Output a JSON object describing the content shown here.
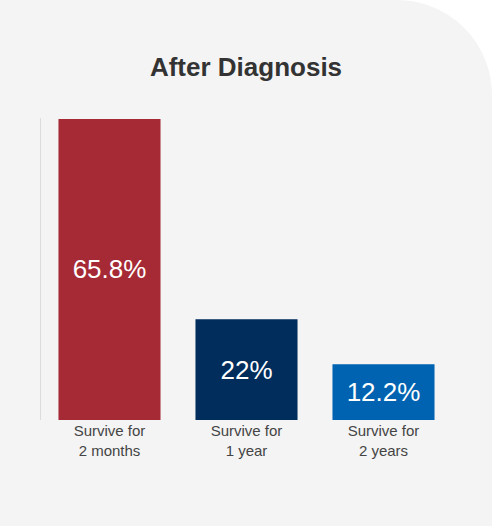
{
  "chart_data": {
    "type": "bar",
    "title": "After Diagnosis",
    "categories": [
      "Survive for\n2 months",
      "Survive for\n1 year",
      "Survive for\n2 years"
    ],
    "values": [
      65.8,
      22,
      12.2
    ],
    "value_labels": [
      "65.8%",
      "22%",
      "12.2%"
    ],
    "colors": [
      "#a52a36",
      "#002d5c",
      "#0063b1"
    ],
    "ylim": [
      0,
      66
    ],
    "yticks": [],
    "grid": false,
    "data_labels": true,
    "tick_labels": "x"
  }
}
